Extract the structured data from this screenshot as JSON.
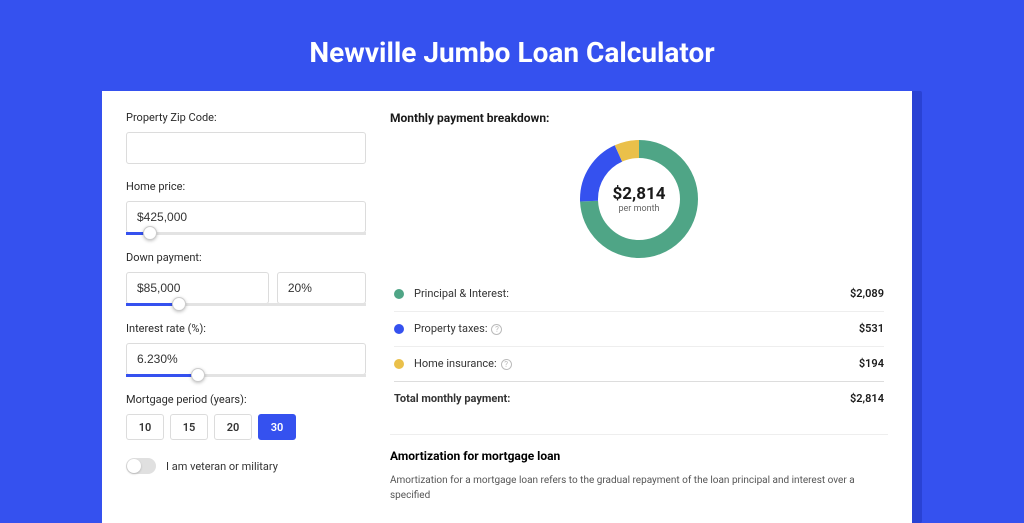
{
  "page_title": "Newville Jumbo Loan Calculator",
  "form": {
    "zip_label": "Property Zip Code:",
    "zip_value": "",
    "home_price_label": "Home price:",
    "home_price_value": "$425,000",
    "home_price_slider_pct": 10,
    "down_payment_label": "Down payment:",
    "down_payment_value": "$85,000",
    "down_payment_pct_value": "20%",
    "down_payment_slider_pct": 22,
    "interest_label": "Interest rate (%):",
    "interest_value": "6.230%",
    "interest_slider_pct": 30,
    "period_label": "Mortgage period (years):",
    "periods": [
      "10",
      "15",
      "20",
      "30"
    ],
    "period_active_index": 3,
    "veteran_label": "I am veteran or military"
  },
  "breakdown": {
    "title": "Monthly payment breakdown:",
    "donut": {
      "center_value": "$2,814",
      "center_sub": "per month",
      "slices": [
        {
          "key": "pi",
          "value": 2089,
          "color": "#4fa586",
          "pct": 74.2
        },
        {
          "key": "tax",
          "value": 531,
          "color": "#3551ef",
          "pct": 18.9
        },
        {
          "key": "ins",
          "value": 194,
          "color": "#eac04a",
          "pct": 6.9
        }
      ],
      "stroke_width": 18,
      "radius": 50,
      "bg_color": "#ffffff"
    },
    "legend": [
      {
        "label": "Principal & Interest:",
        "value": "$2,089",
        "color": "#4fa586",
        "info": false
      },
      {
        "label": "Property taxes:",
        "value": "$531",
        "color": "#3551ef",
        "info": true
      },
      {
        "label": "Home insurance:",
        "value": "$194",
        "color": "#eac04a",
        "info": true
      }
    ],
    "total_label": "Total monthly payment:",
    "total_value": "$2,814"
  },
  "amortization": {
    "title": "Amortization for mortgage loan",
    "text": "Amortization for a mortgage loan refers to the gradual repayment of the loan principal and interest over a specified"
  }
}
